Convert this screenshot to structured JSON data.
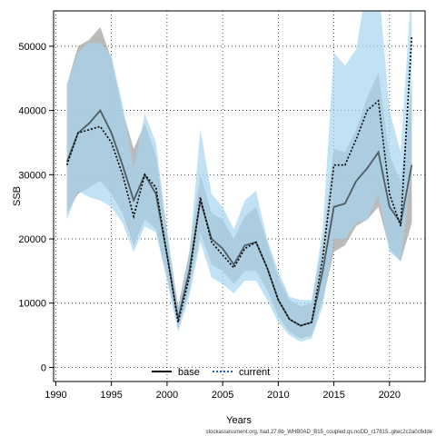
{
  "colors": {
    "base_ribbon": "#a9a9a9",
    "current_ribbon": "#a7d6ef",
    "base_line": "#000000",
    "current_line": "#000000",
    "current_legend_line": "#1f5fa8",
    "grid": "#000000"
  },
  "chart_data": {
    "type": "line",
    "xlabel": "Years",
    "ylabel": "SSB",
    "xlim": [
      1989.8,
      2023.2
    ],
    "ylim": [
      -2200,
      55500
    ],
    "xticks": [
      1990,
      1995,
      2000,
      2005,
      2010,
      2015,
      2020
    ],
    "yticks": [
      0,
      10000,
      20000,
      30000,
      40000,
      50000
    ],
    "grid": true,
    "legend_position": "bottom-center",
    "x": [
      1991,
      1992,
      1993,
      1994,
      1995,
      1996,
      1997,
      1998,
      1999,
      2000,
      2001,
      2002,
      2003,
      2004,
      2005,
      2006,
      2007,
      2008,
      2009,
      2010,
      2011,
      2012,
      2013,
      2014,
      2015,
      2016,
      2017,
      2018,
      2019,
      2020,
      2021,
      2022
    ],
    "series": [
      {
        "name": "base",
        "style": "solid",
        "values": [
          32000,
          36500,
          38000,
          40000,
          36500,
          31500,
          26000,
          30000,
          27000,
          17500,
          7500,
          15000,
          26000,
          20000,
          18500,
          16000,
          19000,
          19500,
          15500,
          10500,
          7500,
          6500,
          7000,
          15000,
          25000,
          25500,
          29000,
          31000,
          33500,
          25000,
          22500,
          31500
        ],
        "upper": [
          44000,
          50000,
          51000,
          53000,
          48000,
          40000,
          34000,
          38000,
          33000,
          21000,
          9500,
          18000,
          30000,
          24000,
          23000,
          20000,
          23500,
          25000,
          19500,
          14000,
          10500,
          9500,
          10000,
          19500,
          34000,
          33500,
          37000,
          42000,
          46000,
          33000,
          29000,
          44000
        ],
        "lower": [
          24000,
          27000,
          28000,
          29000,
          27000,
          24000,
          19000,
          23000,
          21500,
          14000,
          6000,
          12000,
          21000,
          16000,
          15000,
          13000,
          15000,
          15000,
          12000,
          8000,
          5500,
          4500,
          5000,
          10500,
          18000,
          19000,
          22000,
          23000,
          25000,
          18500,
          16500,
          22500
        ]
      },
      {
        "name": "current",
        "style": "dotted",
        "values": [
          31500,
          36500,
          37000,
          37500,
          35000,
          30000,
          23500,
          30000,
          28000,
          17500,
          7000,
          14000,
          26500,
          19500,
          17500,
          15500,
          18500,
          19500,
          15500,
          10500,
          7500,
          6500,
          7000,
          17000,
          31500,
          31500,
          35500,
          40000,
          41500,
          27000,
          22000,
          51500
        ],
        "upper": [
          44000,
          49000,
          50500,
          50500,
          48500,
          41000,
          31000,
          39500,
          35000,
          21500,
          9000,
          17500,
          37000,
          27000,
          25000,
          21500,
          26000,
          27500,
          20000,
          15000,
          11000,
          10500,
          10500,
          21500,
          49000,
          47000,
          49500,
          60000,
          60000,
          40000,
          33500,
          60000
        ],
        "lower": [
          23000,
          27500,
          26500,
          26000,
          25000,
          22500,
          18000,
          22000,
          21000,
          13500,
          5500,
          11000,
          19500,
          14000,
          13000,
          11500,
          13500,
          13500,
          10500,
          7000,
          5000,
          4000,
          4500,
          9500,
          20000,
          20000,
          22500,
          23000,
          27000,
          18000,
          16500,
          31000
        ]
      }
    ]
  },
  "footnote": "stockassessment.org, had.27.6b_WHB0AD_B15_coupled.qs.noDD_r17815..gitec2c2a0c6dde"
}
